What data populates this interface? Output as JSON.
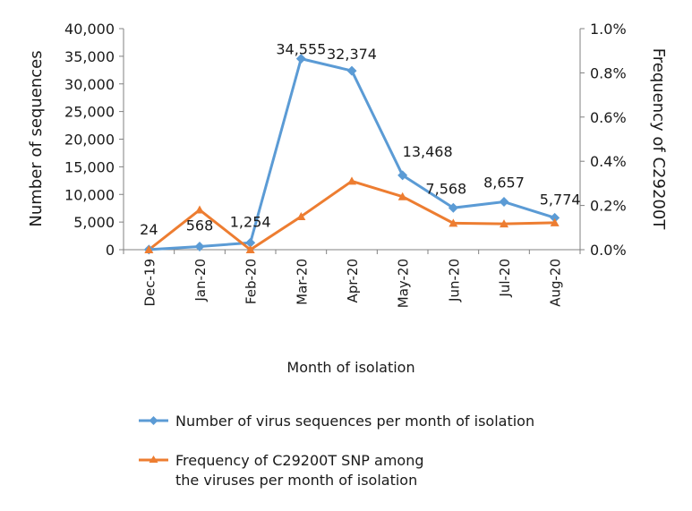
{
  "chart_data": {
    "type": "line",
    "categories": [
      "Dec-19",
      "Jan-20",
      "Feb-20",
      "Mar-20",
      "Apr-20",
      "May-20",
      "Jun-20",
      "Jul-20",
      "Aug-20"
    ],
    "xlabel": "Month of isolation",
    "ylabel_left": "Number of sequences",
    "ylabel_right": "Frequency of C29200T",
    "y_left_lim": [
      0,
      40000
    ],
    "y_left_ticks": [
      "0",
      "5,000",
      "10,000",
      "15,000",
      "20,000",
      "25,000",
      "30,000",
      "35,000",
      "40,000"
    ],
    "y_right_lim": [
      0,
      1.0
    ],
    "y_right_ticks": [
      "0.0%",
      "0.2%",
      "0.4%",
      "0.6%",
      "0.8%",
      "1.0%"
    ],
    "grid": false,
    "legend_position": "bottom",
    "series": [
      {
        "name": "Number of virus sequences per month of isolation",
        "axis": "left",
        "marker": "diamond",
        "color": "#5b9bd5",
        "values": [
          24,
          568,
          1254,
          34555,
          32374,
          13468,
          7568,
          8657,
          5774
        ],
        "labels": [
          "24",
          "568",
          "1,254",
          "34,555",
          "32,374",
          "13,468",
          "7,568",
          "8,657",
          "5,774"
        ]
      },
      {
        "name_line1": "Frequency of C29200T SNP among",
        "name_line2": "the viruses per month of isolation",
        "axis": "right",
        "marker": "triangle",
        "color": "#ed7d31",
        "values": [
          0.0,
          0.18,
          0.0,
          0.15,
          0.31,
          0.24,
          0.12,
          0.117,
          0.122
        ]
      }
    ]
  }
}
